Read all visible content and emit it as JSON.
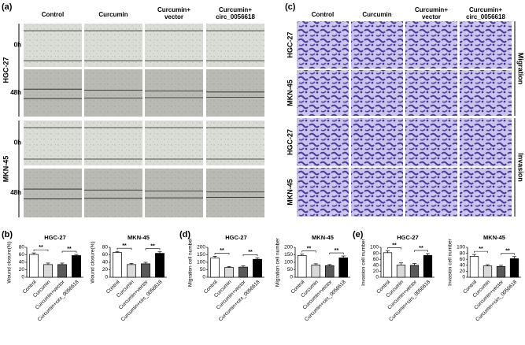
{
  "panel_a": {
    "label": "(a)",
    "columns": [
      [
        "Control"
      ],
      [
        "Curcumin"
      ],
      [
        "Curcumin+",
        "vector"
      ],
      [
        "Curcumin+",
        "circ_0056618"
      ]
    ],
    "groups": [
      {
        "name": "HGC-27",
        "times": [
          "0h",
          "48h"
        ]
      },
      {
        "name": "MKN-45",
        "times": [
          "0h",
          "48h"
        ]
      }
    ]
  },
  "panel_c": {
    "label": "(c)",
    "columns": [
      [
        "Control"
      ],
      [
        "Curcumin"
      ],
      [
        "Curcumin+",
        "vector"
      ],
      [
        "Curcumin+",
        "circ_0056618"
      ]
    ],
    "rows": [
      "HGC-27",
      "MKN-45",
      "HGC-27",
      "MKN-45"
    ],
    "sections": [
      "Migration",
      "Invasion"
    ]
  },
  "panel_labels": [
    "(b)",
    "(d)",
    "(e)"
  ],
  "chart_data": [
    {
      "type": "bar",
      "title": "HGC-27",
      "ylabel": "Wound closure(%)",
      "categories": [
        "Control",
        "Curcumin",
        "Curcumin+vector",
        "Curcumin+circ_0056618"
      ],
      "values": [
        61,
        34,
        34,
        58
      ],
      "errors": [
        4,
        4,
        4,
        3
      ],
      "colors": [
        "#ffffff",
        "#d9d9d9",
        "#595959",
        "#000000"
      ],
      "ylim": [
        0,
        80
      ],
      "yticks": [
        0,
        20,
        40,
        60,
        80
      ],
      "annotations": [
        {
          "text": "**",
          "between": [
            0,
            1
          ]
        },
        {
          "text": "**",
          "between": [
            2,
            3
          ]
        }
      ]
    },
    {
      "type": "bar",
      "title": "MKN-45",
      "ylabel": "Wound closure(%)",
      "categories": [
        "Control",
        "Curcumin",
        "Curcumin+vector",
        "Curcumin+circ_0056618"
      ],
      "values": [
        66,
        34,
        36,
        64
      ],
      "errors": [
        3,
        3,
        4,
        4
      ],
      "colors": [
        "#ffffff",
        "#d9d9d9",
        "#595959",
        "#000000"
      ],
      "ylim": [
        0,
        80
      ],
      "yticks": [
        0,
        20,
        40,
        60,
        80
      ],
      "annotations": [
        {
          "text": "**",
          "between": [
            0,
            1
          ]
        },
        {
          "text": "**",
          "between": [
            2,
            3
          ]
        }
      ]
    },
    {
      "type": "bar",
      "title": "HGC-27",
      "ylabel": "Migration cell number",
      "categories": [
        "Control",
        "Curcumin",
        "Curcumin+vector",
        "Curcumin+circ_0056618"
      ],
      "values": [
        128,
        65,
        68,
        120
      ],
      "errors": [
        12,
        7,
        8,
        10
      ],
      "colors": [
        "#ffffff",
        "#d9d9d9",
        "#595959",
        "#000000"
      ],
      "ylim": [
        0,
        200
      ],
      "yticks": [
        0,
        50,
        100,
        150,
        200
      ],
      "annotations": [
        {
          "text": "**",
          "between": [
            0,
            1
          ]
        },
        {
          "text": "**",
          "between": [
            2,
            3
          ]
        }
      ]
    },
    {
      "type": "bar",
      "title": "MKN-45",
      "ylabel": "Migration cell number",
      "categories": [
        "Control",
        "Curcumin",
        "Curcumin+vector",
        "Curcumin+circ_0056618"
      ],
      "values": [
        145,
        82,
        78,
        130
      ],
      "errors": [
        10,
        8,
        7,
        12
      ],
      "colors": [
        "#ffffff",
        "#d9d9d9",
        "#595959",
        "#000000"
      ],
      "ylim": [
        0,
        200
      ],
      "yticks": [
        0,
        50,
        100,
        150,
        200
      ],
      "annotations": [
        {
          "text": "**",
          "between": [
            0,
            1
          ]
        },
        {
          "text": "**",
          "between": [
            2,
            3
          ]
        }
      ]
    },
    {
      "type": "bar",
      "title": "HGC-27",
      "ylabel": "Invasion cell number",
      "categories": [
        "Control",
        "Curcumin",
        "Curcumin+vector",
        "Curcumin+circ_0056618"
      ],
      "values": [
        82,
        41,
        40,
        73
      ],
      "errors": [
        6,
        7,
        6,
        6
      ],
      "colors": [
        "#ffffff",
        "#d9d9d9",
        "#595959",
        "#000000"
      ],
      "ylim": [
        0,
        100
      ],
      "yticks": [
        0,
        20,
        40,
        60,
        80,
        100
      ],
      "annotations": [
        {
          "text": "**",
          "between": [
            0,
            1
          ]
        },
        {
          "text": "**",
          "between": [
            2,
            3
          ]
        }
      ]
    },
    {
      "type": "bar",
      "title": "MKN-45",
      "ylabel": "Invasion cell number",
      "categories": [
        "Control",
        "Curcumin",
        "Curcumin+vector",
        "Curcumin+circ_0056618"
      ],
      "values": [
        70,
        38,
        36,
        62
      ],
      "errors": [
        6,
        4,
        4,
        7
      ],
      "colors": [
        "#ffffff",
        "#d9d9d9",
        "#595959",
        "#000000"
      ],
      "ylim": [
        0,
        100
      ],
      "yticks": [
        0,
        20,
        40,
        60,
        80,
        100
      ],
      "annotations": [
        {
          "text": "**",
          "between": [
            0,
            1
          ]
        },
        {
          "text": "**",
          "between": [
            2,
            3
          ]
        }
      ]
    }
  ]
}
